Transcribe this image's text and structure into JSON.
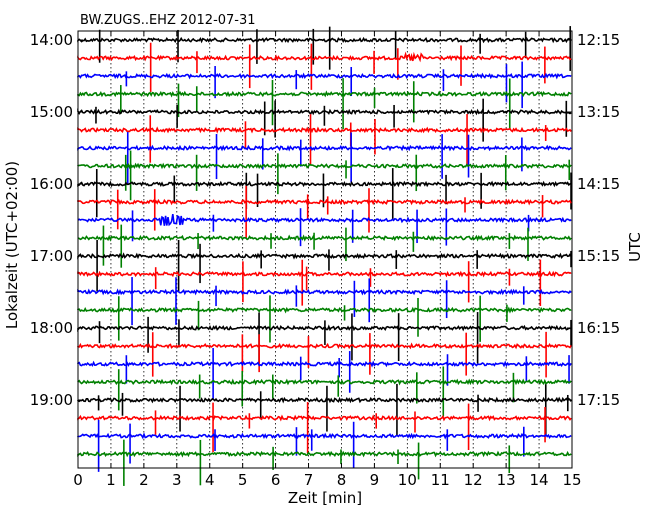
{
  "chart_data": {
    "type": "line",
    "title": "BW.ZUGS..EHZ 2012-07-31",
    "xlabel": "Zeit  [min]",
    "ylabel_left": "Lokalzeit (UTC+02:00)",
    "ylabel_right": "UTC",
    "xlim": [
      0,
      15
    ],
    "x_ticks": [
      "0",
      "1",
      "2",
      "3",
      "4",
      "5",
      "6",
      "7",
      "8",
      "9",
      "10",
      "11",
      "12",
      "13",
      "14",
      "15"
    ],
    "left_ticks": [
      "14:00",
      "15:00",
      "16:00",
      "17:00",
      "18:00",
      "19:00"
    ],
    "right_ticks": [
      "12:15",
      "13:15",
      "14:15",
      "15:15",
      "16:15",
      "17:15"
    ],
    "grid": true,
    "trace_interval_min": 15,
    "trace_count": 24,
    "trace_colors": [
      "#000000",
      "#ff0000",
      "#0000ff",
      "#008000"
    ]
  }
}
